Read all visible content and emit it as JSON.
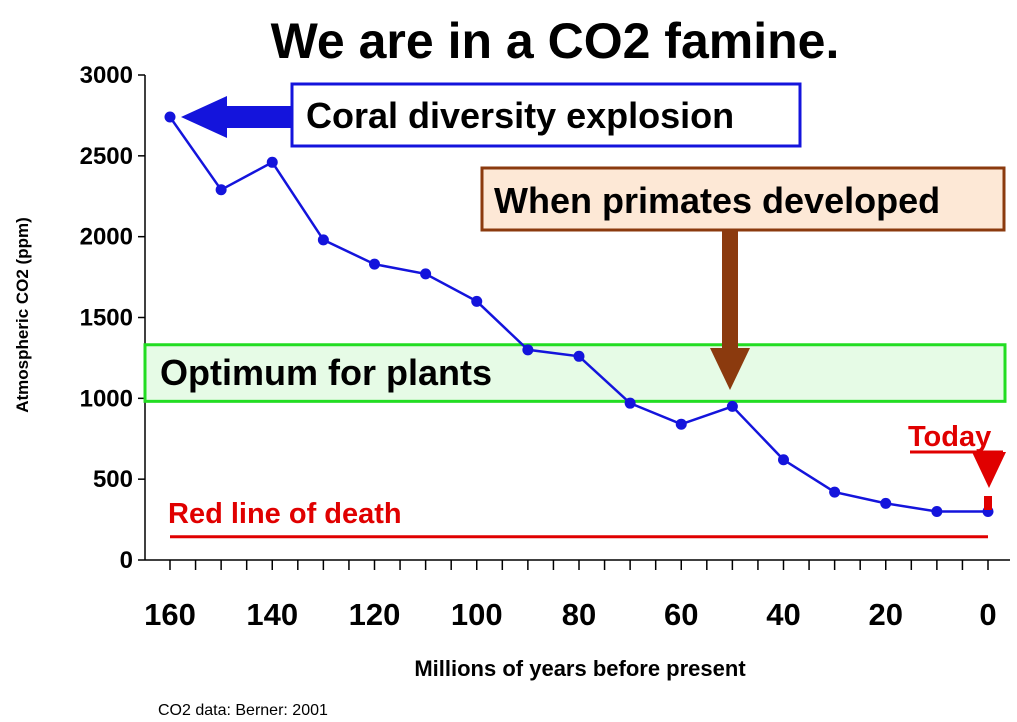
{
  "chart_data": {
    "type": "line",
    "title": "We are in a CO2 famine.",
    "xlabel": "Millions of years before present",
    "ylabel": "Atmospheric CO2 (ppm)",
    "source": "CO2 data: Berner: 2001",
    "x_reversed": true,
    "xlim": [
      165,
      0
    ],
    "ylim": [
      0,
      3000
    ],
    "x_ticks": [
      160,
      140,
      120,
      100,
      80,
      60,
      40,
      20,
      0
    ],
    "y_ticks": [
      0,
      500,
      1000,
      1500,
      2000,
      2500,
      3000
    ],
    "grid": false,
    "series": [
      {
        "color": "#1414dc",
        "x": [
          160,
          150,
          140,
          130,
          120,
          110,
          100,
          90,
          80,
          70,
          60,
          50,
          40,
          30,
          20,
          10,
          0
        ],
        "y": [
          2740,
          2290,
          2460,
          1980,
          1830,
          1770,
          1600,
          1300,
          1260,
          970,
          840,
          950,
          620,
          420,
          350,
          300,
          300
        ]
      }
    ],
    "annotations": {
      "coral": {
        "text": "Coral diversity explosion",
        "color": "#1414dc"
      },
      "primates": {
        "text": "When primates developed",
        "color": "#8b3a0e"
      },
      "optimum": {
        "text": "Optimum for plants",
        "y_range": [
          1000,
          1350
        ],
        "color": "#22dd22"
      },
      "today": {
        "text": "Today",
        "color": "#e00000"
      },
      "red_line": {
        "text": "Red line of death",
        "y": 150,
        "color": "#e00000"
      }
    }
  }
}
